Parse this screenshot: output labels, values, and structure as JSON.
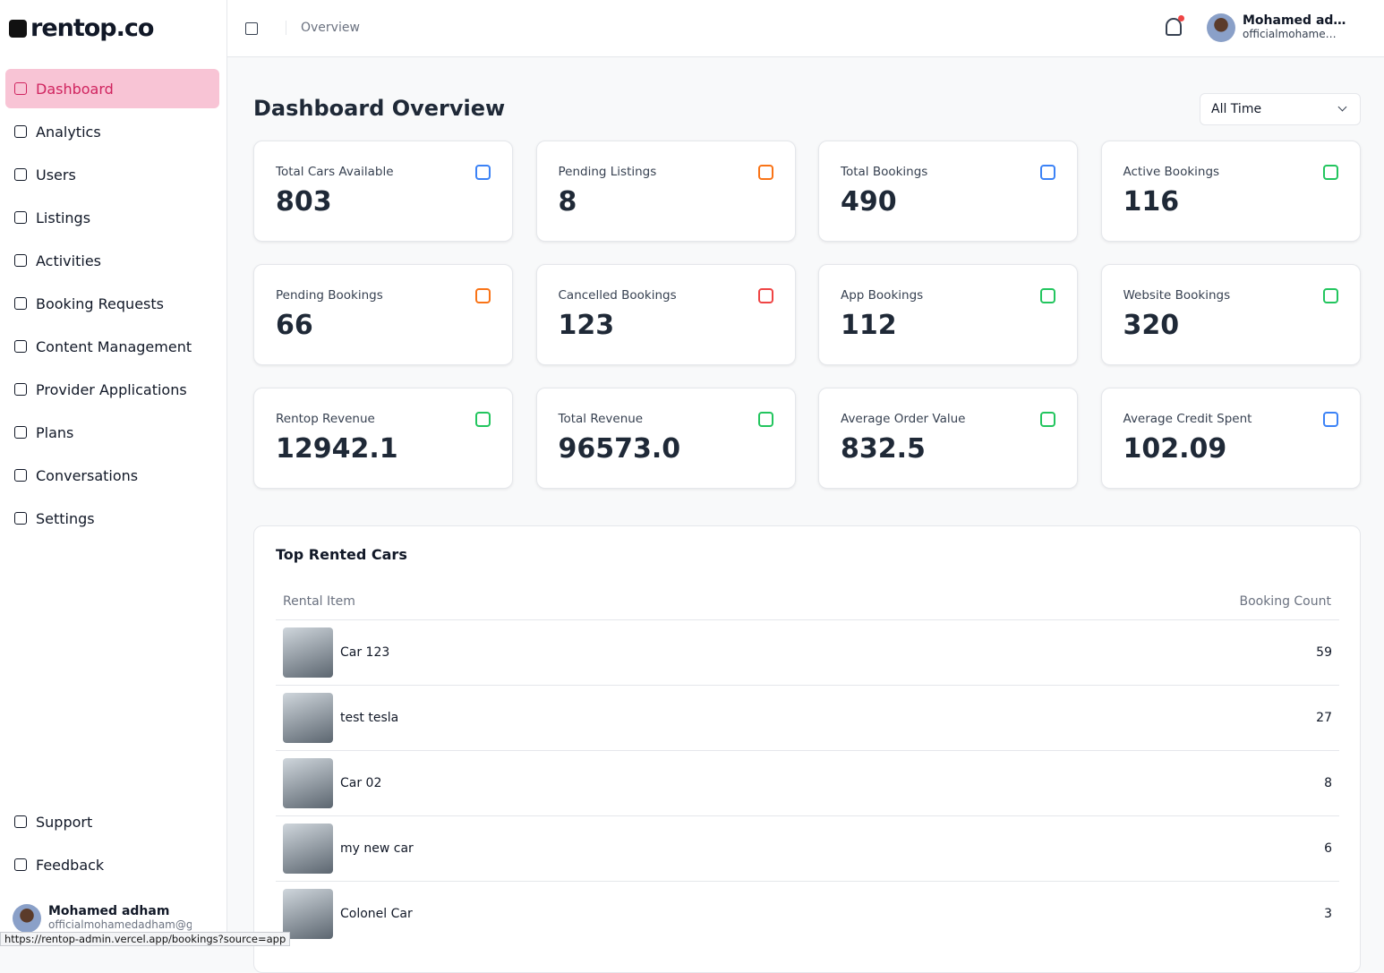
{
  "sidebar": {
    "logo": "rentop.co",
    "nav": [
      "Dashboard",
      "Analytics",
      "Users",
      "Listings",
      "Activities",
      "Booking Requests",
      "Content Management",
      "Provider Applications",
      "Plans",
      "Conversations",
      "Settings"
    ],
    "footer_nav": [
      "Support",
      "Feedback"
    ],
    "user": {
      "name": "Mohamed adham",
      "email": "officialmohamedadham@g"
    }
  },
  "header": {
    "breadcrumb": "Overview",
    "user": {
      "name": "Mohamed ad…",
      "email": "officialmohame…"
    }
  },
  "main": {
    "title": "Dashboard Overview",
    "filter": "All Time",
    "cards": [
      {
        "label": "Total Cars Available",
        "value": "803",
        "color": "#3b82f6"
      },
      {
        "label": "Pending Listings",
        "value": "8",
        "color": "#f97316"
      },
      {
        "label": "Total Bookings",
        "value": "490",
        "color": "#3b82f6"
      },
      {
        "label": "Active Bookings",
        "value": "116",
        "color": "#22c55e"
      },
      {
        "label": "Pending Bookings",
        "value": "66",
        "color": "#f97316"
      },
      {
        "label": "Cancelled Bookings",
        "value": "123",
        "color": "#ef4444"
      },
      {
        "label": "App Bookings",
        "value": "112",
        "color": "#22c55e"
      },
      {
        "label": "Website Bookings",
        "value": "320",
        "color": "#22c55e"
      },
      {
        "label": "Rentop Revenue",
        "value": "12942.1",
        "color": "#22c55e"
      },
      {
        "label": "Total Revenue",
        "value": "96573.0",
        "color": "#22c55e"
      },
      {
        "label": "Average Order Value",
        "value": "832.5",
        "color": "#22c55e"
      },
      {
        "label": "Average Credit Spent",
        "value": "102.09",
        "color": "#3b82f6"
      }
    ],
    "table": {
      "title": "Top Rented Cars",
      "columns": [
        "Rental Item",
        "Booking Count"
      ],
      "rows": [
        [
          "Car 123",
          59
        ],
        [
          "test tesla",
          27
        ],
        [
          "Car 02",
          8
        ],
        [
          "my new car",
          6
        ],
        [
          "Colonel Car",
          3
        ]
      ]
    }
  },
  "status_url": "https://rentop-admin.vercel.app/bookings?source=app"
}
